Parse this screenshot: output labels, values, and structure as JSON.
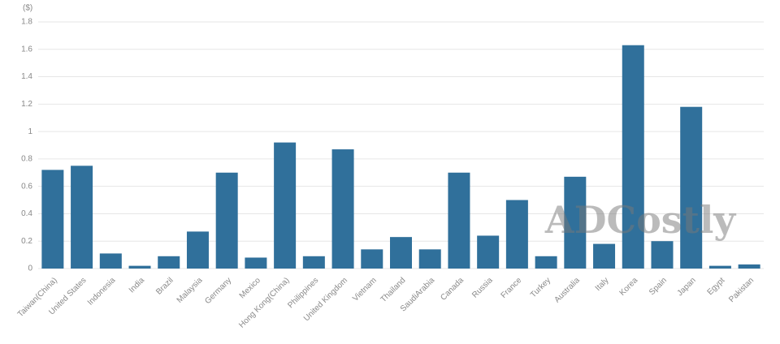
{
  "chart_data": {
    "type": "bar",
    "unit_label": "($)",
    "watermark": "ADCostly",
    "categories": [
      "Taiwan(China)",
      "United States",
      "Indonesia",
      "India",
      "Brazil",
      "Malaysia",
      "Germany",
      "Mexico",
      "Hong Kong(China)",
      "Philippines",
      "United Kingdom",
      "Vietnam",
      "Thailand",
      "SaudiArabia",
      "Canada",
      "Russia",
      "France",
      "Turkey",
      "Australia",
      "Italy",
      "Korea",
      "Spain",
      "Japan",
      "Egypt",
      "Pakistan"
    ],
    "values": [
      0.72,
      0.75,
      0.11,
      0.02,
      0.09,
      0.27,
      0.7,
      0.08,
      0.92,
      0.09,
      0.87,
      0.14,
      0.23,
      0.14,
      0.7,
      0.24,
      0.5,
      0.09,
      0.67,
      0.18,
      1.63,
      0.2,
      1.18,
      0.02,
      0.03
    ],
    "color": "#30709b",
    "ylim": [
      0,
      1.8
    ],
    "yticks": [
      0,
      0.2,
      0.4,
      0.6,
      0.8,
      1,
      1.2,
      1.4,
      1.6,
      1.8
    ],
    "grid": true
  }
}
